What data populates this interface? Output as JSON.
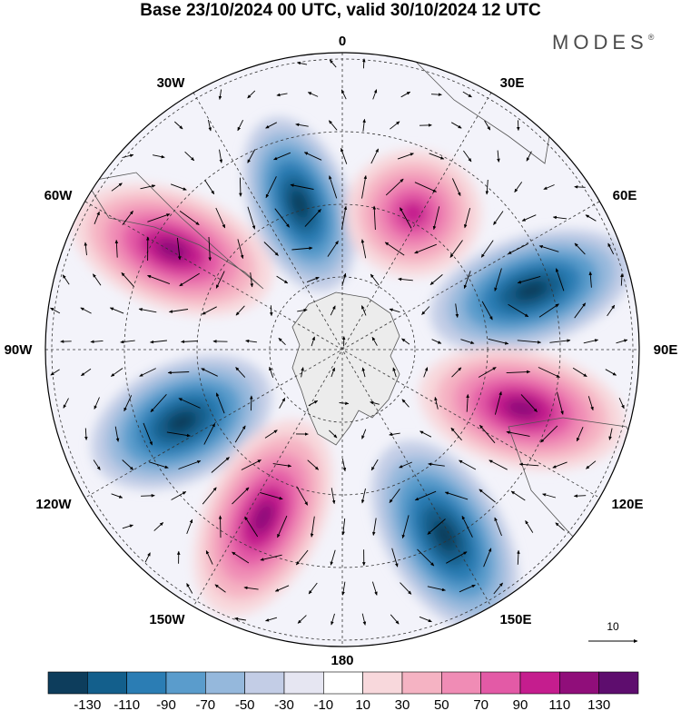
{
  "title": "Base 23/10/2024 00 UTC, valid 30/10/2024 12 UTC",
  "brand": "MODES",
  "brand_mark": "®",
  "longitude_labels": {
    "lon_0": "0",
    "lon_30e": "30E",
    "lon_60e": "60E",
    "lon_90e": "90E",
    "lon_120e": "120E",
    "lon_150e": "150E",
    "lon_180": "180",
    "lon_150w": "150W",
    "lon_120w": "120W",
    "lon_90w": "90W",
    "lon_60w": "60W",
    "lon_30w": "30W"
  },
  "reference_vector": {
    "label": "10"
  },
  "colorbar": {
    "ticks": [
      "-130",
      "-110",
      "-90",
      "-70",
      "-50",
      "-30",
      "-10",
      "10",
      "30",
      "50",
      "70",
      "90",
      "110",
      "130"
    ],
    "colors": [
      "#0d3d5c",
      "#135f8c",
      "#2b7db4",
      "#5a9ccc",
      "#95b8dc",
      "#c3cde6",
      "#e6e6f2",
      "#ffffff",
      "#f8d8dc",
      "#f5b3c3",
      "#f08cb5",
      "#e35aa6",
      "#c51d8e",
      "#900e7a",
      "#5e0d6e"
    ]
  },
  "map_data": {
    "projection": "south polar stereographic",
    "anomalies": [
      {
        "name": "anomaly-negative-30w",
        "sign": "negative",
        "peak": -130
      },
      {
        "name": "anomaly-positive-20e",
        "sign": "positive",
        "peak": 90
      },
      {
        "name": "anomaly-positive-60w",
        "sign": "positive",
        "peak": 110
      },
      {
        "name": "anomaly-negative-75e",
        "sign": "negative",
        "peak": -130
      },
      {
        "name": "anomaly-positive-110e",
        "sign": "positive",
        "peak": 110
      },
      {
        "name": "anomaly-negative-115w",
        "sign": "negative",
        "peak": -130
      },
      {
        "name": "anomaly-positive-150w",
        "sign": "positive",
        "peak": 110
      },
      {
        "name": "anomaly-negative-150e",
        "sign": "negative",
        "peak": -110
      }
    ]
  }
}
